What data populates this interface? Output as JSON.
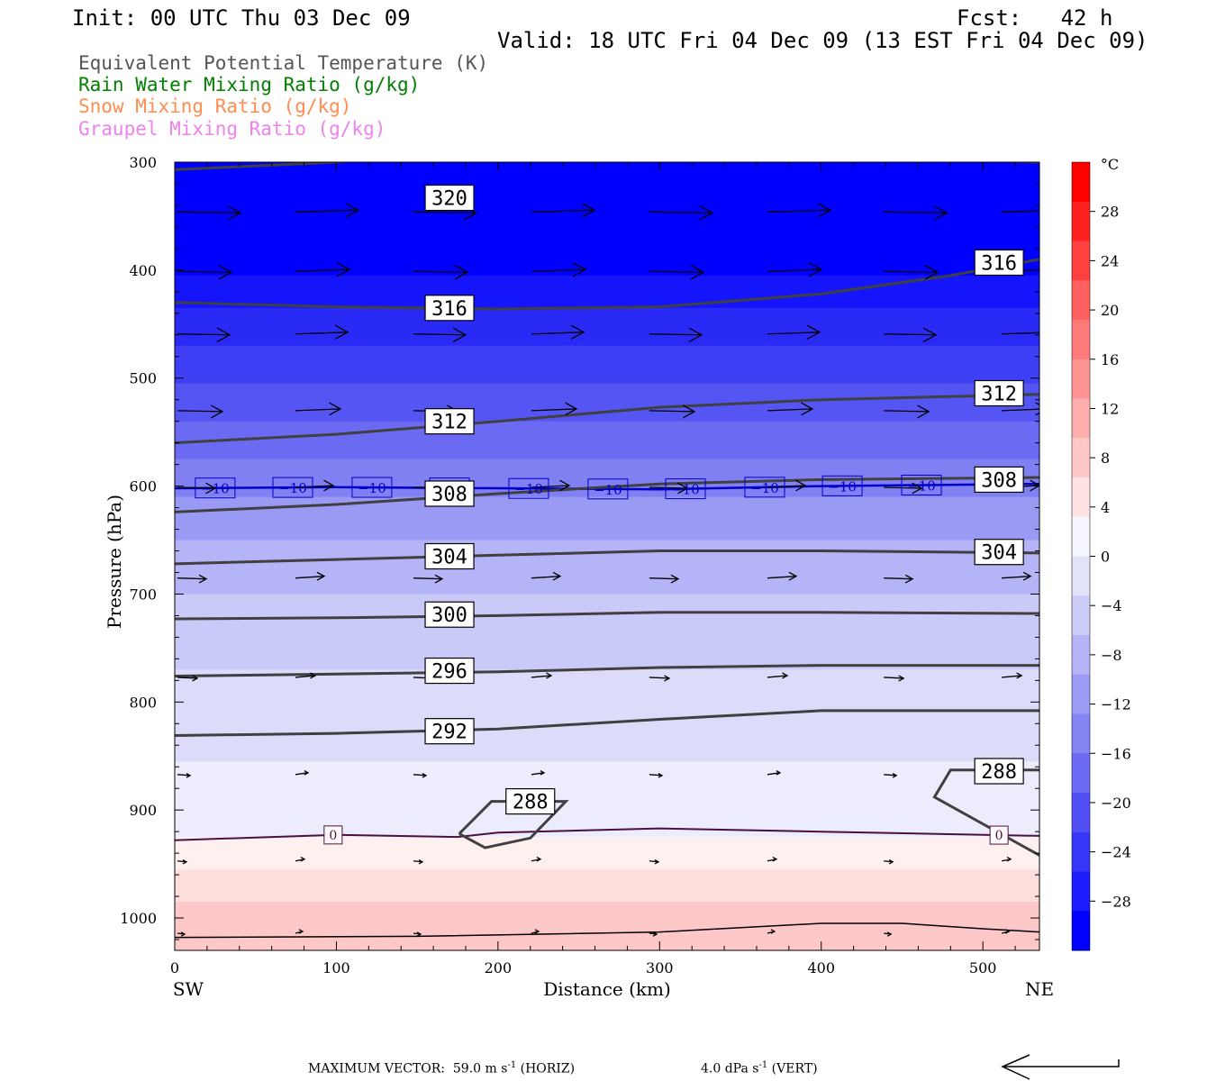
{
  "header": {
    "init": "Init: 00 UTC Thu 03 Dec 09",
    "fcst": "Fcst:   42 h",
    "valid": "Valid: 18 UTC Fri 04 Dec 09 (13 EST Fri 04 Dec 09)"
  },
  "legend_lines": [
    {
      "text": "Equivalent Potential Temperature (K)",
      "color": "#555555"
    },
    {
      "text": "Rain Water Mixing Ratio (g/kg)",
      "color": "#007f00"
    },
    {
      "text": "Snow Mixing Ratio (g/kg)",
      "color": "#ff8c50"
    },
    {
      "text": "Graupel Mixing Ratio (g/kg)",
      "color": "#ee82ee"
    }
  ],
  "chart_data": {
    "type": "cross-section contour",
    "xlabel": "Distance (km)",
    "ylabel": "Pressure (hPa)",
    "xlim": [
      0,
      535
    ],
    "ylim": [
      300,
      1030
    ],
    "x_ticks": [
      "0",
      "100",
      "200",
      "300",
      "400",
      "500"
    ],
    "y_ticks": [
      "300",
      "400",
      "500",
      "600",
      "700",
      "800",
      "900",
      "1000"
    ],
    "x_end_labels": {
      "left": "SW",
      "right": "NE"
    },
    "temperature_fill": {
      "unit": "°C",
      "levels": [
        32,
        28,
        24,
        20,
        16,
        12,
        8,
        4,
        0,
        -4,
        -8,
        -12,
        -16,
        -20,
        -24,
        -28,
        -32
      ],
      "tick_labels": [
        "28",
        "24",
        "20",
        "16",
        "12",
        "8",
        "4",
        "0",
        "−4",
        "−8",
        "−12",
        "−16",
        "−20",
        "−24",
        "−28"
      ],
      "bands_top_to_bottom": [
        {
          "p_top": 300,
          "p_bot": 405,
          "color": "#0000ff"
        },
        {
          "p_top": 405,
          "p_bot": 435,
          "color": "#1515fb"
        },
        {
          "p_top": 435,
          "p_bot": 470,
          "color": "#2a2af7"
        },
        {
          "p_top": 470,
          "p_bot": 505,
          "color": "#3f3ff5"
        },
        {
          "p_top": 505,
          "p_bot": 540,
          "color": "#5555f3"
        },
        {
          "p_top": 540,
          "p_bot": 575,
          "color": "#6a6af2"
        },
        {
          "p_top": 575,
          "p_bot": 610,
          "color": "#8080f2"
        },
        {
          "p_top": 610,
          "p_bot": 650,
          "color": "#9a9af4"
        },
        {
          "p_top": 650,
          "p_bot": 700,
          "color": "#b4b4f6"
        },
        {
          "p_top": 700,
          "p_bot": 770,
          "color": "#cacaf8"
        },
        {
          "p_top": 770,
          "p_bot": 855,
          "color": "#dcdcfa"
        },
        {
          "p_top": 855,
          "p_bot": 925,
          "color": "#ececfc"
        },
        {
          "p_top": 925,
          "p_bot": 955,
          "color": "#fff0f0"
        },
        {
          "p_top": 955,
          "p_bot": 985,
          "color": "#ffdede"
        },
        {
          "p_top": 985,
          "p_bot": 1030,
          "color": "#ffc8c8"
        }
      ],
      "colorbar_colors": [
        "#ff0000",
        "#ff2020",
        "#ff4040",
        "#ff6060",
        "#ff7a7a",
        "#ff9494",
        "#ffaeae",
        "#ffc8c8",
        "#ffe2e2",
        "#f6f6ff",
        "#e2e2fb",
        "#ccccf8",
        "#b4b4f6",
        "#9c9cf4",
        "#8484f2",
        "#6a6af3",
        "#5050f5",
        "#3636f8",
        "#1c1cfb",
        "#0000ff"
      ]
    },
    "theta_e_contours": [
      {
        "label": "320",
        "points": [
          [
            0,
            307
          ],
          [
            100,
            300
          ],
          [
            200,
            290
          ],
          [
            300,
            290
          ],
          [
            400,
            295
          ],
          [
            535,
            300
          ]
        ],
        "label_at": [
          170,
          333
        ]
      },
      {
        "label": "316",
        "points": [
          [
            0,
            430
          ],
          [
            100,
            434
          ],
          [
            200,
            436
          ],
          [
            300,
            434
          ],
          [
            400,
            422
          ],
          [
            480,
            405
          ],
          [
            535,
            390
          ]
        ],
        "label_at": [
          170,
          435
        ],
        "extra_label_at": [
          510,
          393
        ]
      },
      {
        "label": "312",
        "points": [
          [
            0,
            560
          ],
          [
            100,
            552
          ],
          [
            200,
            540
          ],
          [
            300,
            527
          ],
          [
            400,
            520
          ],
          [
            535,
            515
          ]
        ],
        "label_at": [
          170,
          540
        ],
        "extra_label_at": [
          510,
          514
        ]
      },
      {
        "label": "308",
        "points": [
          [
            0,
            624
          ],
          [
            100,
            617
          ],
          [
            200,
            607
          ],
          [
            300,
            598
          ],
          [
            400,
            594
          ],
          [
            535,
            592
          ]
        ],
        "label_at": [
          170,
          607
        ],
        "extra_label_at": [
          510,
          594
        ]
      },
      {
        "label": "304",
        "points": [
          [
            0,
            672
          ],
          [
            100,
            668
          ],
          [
            200,
            664
          ],
          [
            300,
            660
          ],
          [
            400,
            660
          ],
          [
            535,
            662
          ]
        ],
        "label_at": [
          170,
          665
        ],
        "extra_label_at": [
          510,
          661
        ]
      },
      {
        "label": "300",
        "points": [
          [
            0,
            723
          ],
          [
            100,
            722
          ],
          [
            200,
            720
          ],
          [
            300,
            717
          ],
          [
            400,
            717
          ],
          [
            535,
            718
          ]
        ],
        "label_at": [
          170,
          719
        ]
      },
      {
        "label": "296",
        "points": [
          [
            0,
            776
          ],
          [
            100,
            774
          ],
          [
            200,
            772
          ],
          [
            300,
            768
          ],
          [
            400,
            766
          ],
          [
            535,
            766
          ]
        ],
        "label_at": [
          170,
          771
        ]
      },
      {
        "label": "292",
        "points": [
          [
            0,
            831
          ],
          [
            100,
            829
          ],
          [
            200,
            825
          ],
          [
            300,
            816
          ],
          [
            400,
            808
          ],
          [
            535,
            808
          ]
        ],
        "label_at": [
          170,
          827
        ]
      },
      {
        "label": "288",
        "points": [
          [
            176,
            922
          ],
          [
            192,
            935
          ],
          [
            220,
            926
          ],
          [
            242,
            892
          ],
          [
            196,
            892
          ],
          [
            176,
            922
          ]
        ],
        "label_at": [
          220,
          892
        ]
      },
      {
        "label": "288",
        "points": [
          [
            535,
            942
          ],
          [
            470,
            888
          ],
          [
            480,
            863
          ],
          [
            535,
            863
          ]
        ],
        "label_at": [
          510,
          864
        ]
      }
    ],
    "isotherm_minus10": {
      "label": "−10",
      "points": [
        [
          0,
          602
        ],
        [
          100,
          601
        ],
        [
          200,
          602
        ],
        [
          300,
          603
        ],
        [
          400,
          600
        ],
        [
          535,
          598
        ]
      ],
      "label_xs": [
        25,
        73,
        122,
        170,
        219,
        268,
        316,
        365,
        413,
        462
      ]
    },
    "isotherm_0": {
      "label": "0",
      "points": [
        [
          0,
          928
        ],
        [
          100,
          923
        ],
        [
          175,
          925
        ],
        [
          200,
          921
        ],
        [
          300,
          917
        ],
        [
          400,
          920
        ],
        [
          535,
          924
        ]
      ],
      "label_xs": [
        98,
        510
      ]
    },
    "ground_line": {
      "points": [
        [
          0,
          1018
        ],
        [
          150,
          1017
        ],
        [
          300,
          1013
        ],
        [
          400,
          1005
        ],
        [
          450,
          1005
        ],
        [
          500,
          1010
        ],
        [
          535,
          1013
        ]
      ]
    },
    "wind_vectors": [
      {
        "p": 347,
        "xs": [
          0,
          73,
          146,
          219,
          292,
          365,
          437,
          510
        ],
        "len": 70
      },
      {
        "p": 402,
        "xs": [
          0,
          73,
          146,
          219,
          292,
          365,
          437,
          510
        ],
        "len": 60
      },
      {
        "p": 460,
        "xs": [
          0,
          73,
          146,
          219,
          292,
          365,
          437,
          510
        ],
        "len": 58
      },
      {
        "p": 531,
        "xs": [
          0,
          73,
          146,
          219,
          292,
          365,
          437,
          510
        ],
        "len": 50
      },
      {
        "p": 602,
        "xs": [
          0,
          73,
          146,
          219,
          292,
          365,
          437,
          510
        ],
        "len": 42
      },
      {
        "p": 686,
        "xs": [
          0,
          73,
          146,
          219,
          292,
          365,
          437,
          510
        ],
        "len": 32
      },
      {
        "p": 778,
        "xs": [
          0,
          73,
          146,
          219,
          292,
          365,
          437,
          510
        ],
        "len": 22
      },
      {
        "p": 868,
        "xs": [
          0,
          73,
          146,
          219,
          292,
          365,
          437,
          510
        ],
        "len": 14
      },
      {
        "p": 948,
        "xs": [
          0,
          73,
          146,
          219,
          292,
          365,
          437,
          510
        ],
        "len": 10
      },
      {
        "p": 1015,
        "xs": [
          0,
          73,
          146,
          219,
          292,
          365,
          437,
          510
        ],
        "len": 8
      }
    ]
  },
  "footer": {
    "max_vector_label": "MAXIMUM VECTOR:",
    "horiz_value": "59.0 m s",
    "horiz_exp": "-1",
    "horiz_unit": " (HORIZ)",
    "vert_value": "4.0 dPa s",
    "vert_exp": "-1",
    "vert_unit": " (VERT)"
  }
}
